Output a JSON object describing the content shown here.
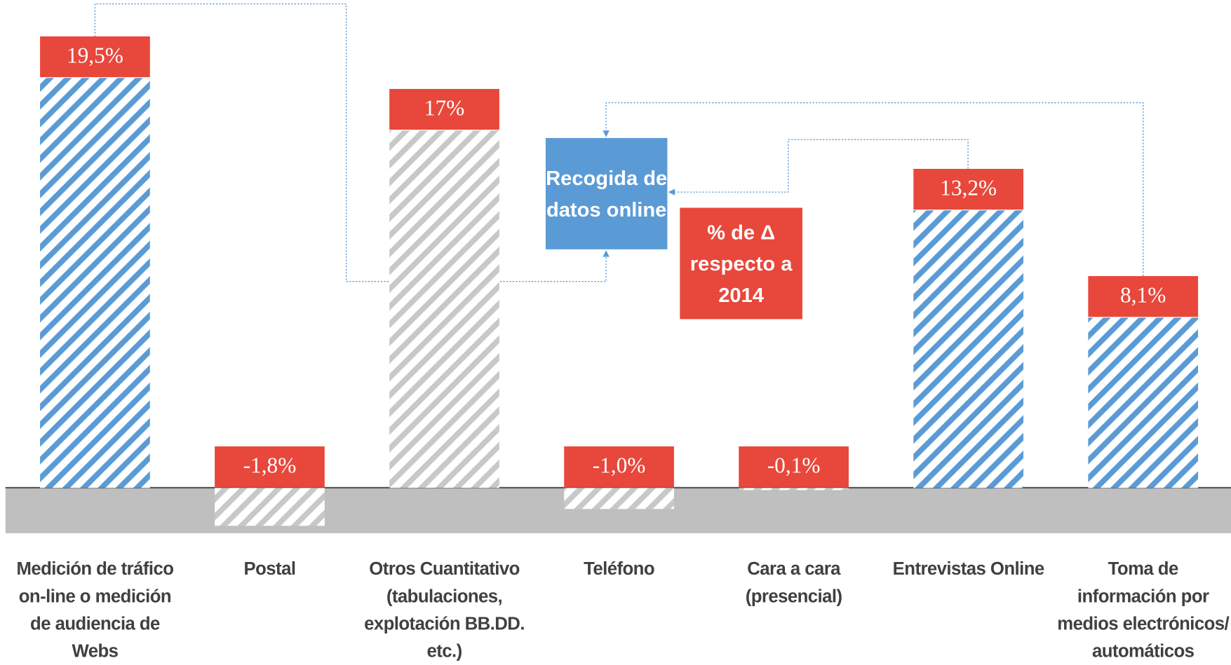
{
  "chart_data": {
    "type": "bar",
    "categories": [
      "Medición de tráfico on-line o medición de audiencia de Webs",
      "Postal",
      "Otros Cuantitativo (tabulaciones, explotación BB.DD. etc.)",
      "Teléfono",
      "Cara a cara (presencial)",
      "Entrevistas Online",
      "Toma de información por medios electrónicos/ automáticos"
    ],
    "values": [
      19.5,
      -1.8,
      17,
      -1.0,
      -0.1,
      13.2,
      8.1
    ],
    "value_labels": [
      "19,5%",
      "-1,8%",
      "17%",
      "-1,0%",
      "-0,1%",
      "13,2%",
      "8,1%"
    ],
    "colors": [
      "#5b9bd5",
      "#c8c8c8",
      "#c8c8c8",
      "#c8c8c8",
      "#c8c8c8",
      "#5b9bd5",
      "#5b9bd5"
    ],
    "label_color": "#e8473b",
    "ylim": [
      -2,
      20
    ],
    "annotations": [
      "Recogida de datos online",
      "% de Δ respecto a 2014"
    ]
  }
}
